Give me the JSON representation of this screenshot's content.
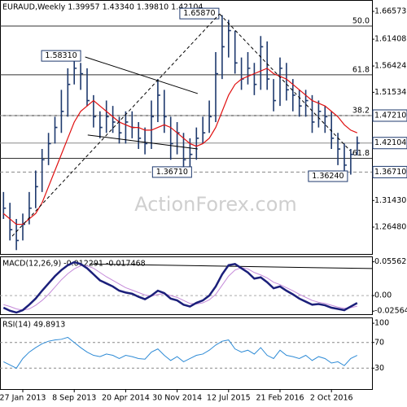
{
  "chart_data": [
    {
      "type": "ohlc",
      "title": "EURAUD,Weekly  1.39957 1.43340 1.39810 1.42104",
      "categories": [
        null,
        null,
        null,
        "27 Jan 2013",
        null,
        null,
        null,
        null,
        null,
        null,
        null,
        "8 Sep 2013",
        null,
        null,
        null,
        null,
        null,
        null,
        null,
        "20 Apr 2014",
        null,
        null,
        null,
        null,
        null,
        null,
        null,
        "30 Nov 2014",
        null,
        null,
        null,
        null,
        null,
        null,
        null,
        "12 Jul 2015",
        null,
        null,
        null,
        null,
        null,
        null,
        null,
        "21 Feb 2016",
        null,
        null,
        null,
        null,
        null,
        null,
        null,
        "2 Oct 2016",
        null,
        null,
        null,
        null
      ],
      "high": [
        1.33,
        1.31,
        1.28,
        1.29,
        1.33,
        1.37,
        1.41,
        1.44,
        1.47,
        1.52,
        1.56,
        1.5831,
        1.57,
        1.56,
        1.51,
        1.48,
        1.5,
        1.49,
        1.47,
        1.48,
        1.48,
        1.46,
        1.45,
        1.5,
        1.54,
        1.52,
        1.47,
        1.46,
        1.44,
        1.43,
        1.45,
        1.47,
        1.5,
        1.59,
        1.6587,
        1.65,
        1.63,
        1.58,
        1.59,
        1.57,
        1.62,
        1.61,
        1.54,
        1.58,
        1.57,
        1.54,
        1.52,
        1.52,
        1.51,
        1.5,
        1.49,
        1.48,
        1.44,
        1.42,
        1.41,
        1.4334
      ],
      "low": [
        1.28,
        1.24,
        1.222,
        1.24,
        1.27,
        1.3,
        1.33,
        1.38,
        1.42,
        1.44,
        1.47,
        1.53,
        1.52,
        1.49,
        1.45,
        1.43,
        1.44,
        1.44,
        1.42,
        1.42,
        1.43,
        1.41,
        1.4,
        1.41,
        1.46,
        1.44,
        1.39,
        1.4,
        1.375,
        1.3671,
        1.39,
        1.42,
        1.44,
        1.46,
        1.54,
        1.58,
        1.55,
        1.52,
        1.53,
        1.51,
        1.52,
        1.52,
        1.48,
        1.49,
        1.5,
        1.48,
        1.47,
        1.47,
        1.44,
        1.45,
        1.44,
        1.41,
        1.38,
        1.37,
        1.3624,
        1.3981
      ],
      "close": [
        1.3,
        1.26,
        1.24,
        1.27,
        1.3,
        1.34,
        1.39,
        1.42,
        1.45,
        1.48,
        1.53,
        1.56,
        1.55,
        1.5,
        1.47,
        1.45,
        1.47,
        1.46,
        1.44,
        1.46,
        1.45,
        1.43,
        1.42,
        1.47,
        1.51,
        1.47,
        1.42,
        1.44,
        1.39,
        1.4,
        1.43,
        1.44,
        1.47,
        1.55,
        1.6,
        1.63,
        1.57,
        1.54,
        1.56,
        1.53,
        1.6,
        1.54,
        1.5,
        1.56,
        1.52,
        1.51,
        1.49,
        1.5,
        1.46,
        1.48,
        1.47,
        1.43,
        1.41,
        1.38,
        1.4,
        1.42104
      ],
      "color": "#1f3a6e",
      "ma": {
        "color": "#e01010",
        "values": [
          1.29,
          1.28,
          1.27,
          1.27,
          1.28,
          1.29,
          1.31,
          1.34,
          1.37,
          1.4,
          1.43,
          1.46,
          1.48,
          1.49,
          1.5,
          1.49,
          1.48,
          1.47,
          1.46,
          1.455,
          1.45,
          1.45,
          1.445,
          1.445,
          1.45,
          1.455,
          1.45,
          1.44,
          1.43,
          1.42,
          1.415,
          1.42,
          1.43,
          1.45,
          1.48,
          1.51,
          1.53,
          1.54,
          1.545,
          1.55,
          1.555,
          1.56,
          1.55,
          1.545,
          1.54,
          1.53,
          1.52,
          1.51,
          1.5,
          1.495,
          1.49,
          1.48,
          1.47,
          1.455,
          1.445,
          1.44
        ]
      },
      "ylim": [
        1.2149,
        1.6869
      ],
      "yticks": [
        1.66573,
        1.61408,
        1.56424,
        1.51534,
        {
          "value": 1.3143,
          "label": "1.31430"
        },
        {
          "value": 1.2648,
          "label": "1.26480"
        }
      ],
      "price_labels": [
        {
          "value": 1.4721,
          "label": "1.47210"
        },
        {
          "value": 1.42104,
          "label": "1.42104"
        },
        {
          "value": 1.3671,
          "label": "1.36710"
        }
      ],
      "fib_levels": [
        {
          "value": 1.6385,
          "label": "50.0"
        },
        {
          "value": 1.548,
          "label": "61.8"
        },
        {
          "value": 1.4721,
          "label": "38.2"
        },
        {
          "value": 1.3926,
          "label": "61.8"
        }
      ],
      "trendlines": [
        {
          "from": [
            12.7,
            1.581
          ],
          "to": [
            30.2,
            1.513
          ],
          "dashed": false
        },
        {
          "from": [
            13.1,
            1.436
          ],
          "to": [
            30.2,
            1.41
          ],
          "dashed": false
        },
        {
          "from": [
            1.35,
            1.248
          ],
          "to": [
            33.6,
            1.661
          ],
          "dashed": true
        },
        {
          "from": [
            33.6,
            1.661
          ],
          "to": [
            53.9,
            1.407
          ],
          "dashed": true
        }
      ],
      "annotations": [
        {
          "text": "1.65870",
          "value": 1.6587
        },
        {
          "text": "1.58310",
          "value": 1.5831
        },
        {
          "text": "1.36710",
          "value": 1.3671
        },
        {
          "text": "1.36240",
          "value": 1.3624
        }
      ],
      "watermark": "ActionForex.com"
    },
    {
      "type": "line",
      "title": "MACD(12,26,9) -0.012291 -0.017468",
      "series": [
        {
          "color": "#1b1f7a",
          "width": 2.5,
          "values": [
            -0.02,
            -0.025,
            -0.028,
            -0.024,
            -0.015,
            -0.005,
            0.008,
            0.02,
            0.032,
            0.042,
            0.05,
            0.055,
            0.052,
            0.045,
            0.035,
            0.025,
            0.02,
            0.015,
            0.008,
            0.005,
            0.003,
            -0.002,
            -0.006,
            0.0,
            0.008,
            0.004,
            -0.005,
            -0.008,
            -0.015,
            -0.018,
            -0.012,
            -0.008,
            0.0,
            0.015,
            0.035,
            0.05,
            0.052,
            0.045,
            0.038,
            0.028,
            0.03,
            0.022,
            0.012,
            0.015,
            0.008,
            0.002,
            -0.005,
            -0.01,
            -0.015,
            -0.014,
            -0.016,
            -0.02,
            -0.022,
            -0.024,
            -0.018,
            -0.012291
          ]
        },
        {
          "color": "#c58ad9",
          "width": 1,
          "values": [
            -0.015,
            -0.018,
            -0.022,
            -0.024,
            -0.022,
            -0.016,
            -0.008,
            0.002,
            0.014,
            0.026,
            0.036,
            0.044,
            0.049,
            0.049,
            0.045,
            0.038,
            0.031,
            0.025,
            0.019,
            0.013,
            0.009,
            0.005,
            0.001,
            -0.001,
            0.002,
            0.003,
            0.0,
            -0.003,
            -0.008,
            -0.013,
            -0.014,
            -0.012,
            -0.007,
            0.002,
            0.017,
            0.032,
            0.042,
            0.046,
            0.044,
            0.038,
            0.034,
            0.029,
            0.022,
            0.018,
            0.013,
            0.008,
            0.002,
            -0.003,
            -0.008,
            -0.011,
            -0.013,
            -0.016,
            -0.019,
            -0.021,
            -0.02,
            -0.017468
          ]
        }
      ],
      "ylim": [
        -0.0307,
        0.0645
      ],
      "yticks": [
        0.055629,
        {
          "value": 0,
          "label": "0.00"
        },
        -0.025645
      ],
      "trendlines": [
        {
          "from": [
            13.4,
            0.052
          ],
          "to": [
            57.3,
            0.0445
          ],
          "dashed": false
        }
      ]
    },
    {
      "type": "line",
      "title": "RSI(14) 49.8913",
      "series": [
        {
          "color": "#2e8bd6",
          "width": 1,
          "values": [
            40,
            35,
            30,
            45,
            55,
            62,
            68,
            72,
            74,
            75,
            78,
            70,
            62,
            55,
            50,
            48,
            52,
            50,
            45,
            50,
            48,
            45,
            44,
            55,
            60,
            50,
            42,
            48,
            40,
            45,
            50,
            52,
            58,
            66,
            72,
            74,
            60,
            55,
            58,
            52,
            62,
            50,
            45,
            58,
            50,
            48,
            45,
            50,
            42,
            48,
            45,
            38,
            40,
            34,
            45,
            49.8913
          ]
        }
      ],
      "ylim": [
        -2.6,
        109
      ],
      "yticks": [
        100,
        70,
        30
      ],
      "levels": [
        70,
        30
      ]
    }
  ]
}
